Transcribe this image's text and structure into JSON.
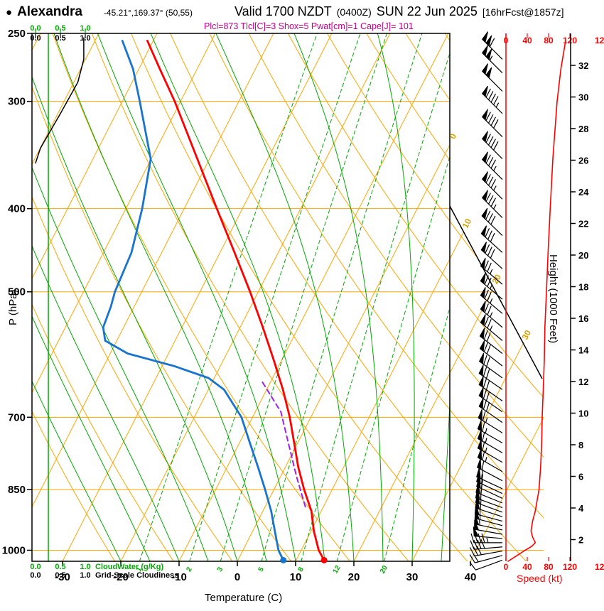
{
  "header": {
    "bullet": "●",
    "station": "Alexandra",
    "coords": "-45.21°,169.37° (50,55)",
    "valid_1": "Valid 1700 NZDT",
    "valid_z": "(0400Z)",
    "valid_2": "SUN 22 Jun 2025",
    "fcst": "[16hrFcst@1857z]",
    "indices": "Plcl=873 Tlcl[C]=3 Shox=5 Pwat[cm]=1 Cape[J]= 101"
  },
  "axes": {
    "left_label": "P (hPa)",
    "bottom_label": "Temperature (C)",
    "right_label": "Height (1000 Feet)",
    "speed_label": "Speed (kt)",
    "cloudwater_scale": [
      "0.0",
      "0.5",
      "1.0"
    ],
    "cloudwater_label": "CloudWater (g/Kg)",
    "cloudiness_scale": [
      "0.0",
      "0.5",
      "1.0"
    ],
    "cloudiness_label": "Grid-Scale Cloudiness"
  },
  "chart_data": {
    "type": "skewt_logp_sounding",
    "pressure_range_hpa": [
      250,
      1030
    ],
    "temp_axis_range_c": [
      -30,
      40
    ],
    "pressure_ticks": [
      250,
      300,
      400,
      500,
      700,
      850,
      1000
    ],
    "isobar_lines": [
      300,
      400,
      500,
      700,
      850,
      1000
    ],
    "temp_ticks_c": [
      -30,
      -20,
      -10,
      0,
      10,
      20,
      30,
      40
    ],
    "height_ticks_kft": [
      2,
      4,
      6,
      8,
      10,
      12,
      14,
      16,
      18,
      20,
      22,
      24,
      26,
      28,
      30,
      32
    ],
    "speed_ticks_kt": [
      0,
      40,
      80,
      120
    ],
    "speed_edge_label": "120",
    "isotherm_label_values": [
      0,
      10,
      20,
      30
    ],
    "mixing_ratio_g_kg": [
      1,
      2,
      3,
      5,
      8,
      12,
      20
    ],
    "temperature_profile": [
      [
        1027,
        14.8
      ],
      [
        1000,
        13.0
      ],
      [
        950,
        10.5
      ],
      [
        900,
        8.3
      ],
      [
        850,
        5.2
      ],
      [
        800,
        2.2
      ],
      [
        750,
        -0.6
      ],
      [
        700,
        -3.6
      ],
      [
        650,
        -7.2
      ],
      [
        600,
        -11.4
      ],
      [
        550,
        -16.1
      ],
      [
        500,
        -21.4
      ],
      [
        450,
        -27.5
      ],
      [
        400,
        -34.4
      ],
      [
        350,
        -42.1
      ],
      [
        300,
        -51.0
      ],
      [
        275,
        -56.4
      ],
      [
        255,
        -61.0
      ]
    ],
    "dewpoint_profile": [
      [
        1027,
        7.8
      ],
      [
        1000,
        6.1
      ],
      [
        950,
        3.8
      ],
      [
        900,
        1.4
      ],
      [
        850,
        -1.5
      ],
      [
        800,
        -4.7
      ],
      [
        750,
        -8.2
      ],
      [
        700,
        -11.9
      ],
      [
        650,
        -17.3
      ],
      [
        630,
        -21.0
      ],
      [
        610,
        -28.0
      ],
      [
        590,
        -37.0
      ],
      [
        570,
        -42.0
      ],
      [
        550,
        -43.5
      ],
      [
        520,
        -44.0
      ],
      [
        500,
        -44.6
      ],
      [
        450,
        -45.2
      ],
      [
        400,
        -47.2
      ],
      [
        350,
        -50.1
      ],
      [
        300,
        -57.0
      ],
      [
        275,
        -61.0
      ],
      [
        255,
        -65.3
      ]
    ],
    "parcel_path": [
      [
        890,
        6.9
      ],
      [
        820,
        2.7
      ],
      [
        750,
        -1.6
      ],
      [
        690,
        -5.6
      ],
      [
        635,
        -11.6
      ]
    ],
    "speed_profile": [
      [
        1030,
        4
      ],
      [
        1015,
        20
      ],
      [
        1000,
        36
      ],
      [
        990,
        48
      ],
      [
        980,
        55
      ],
      [
        965,
        50
      ],
      [
        950,
        47
      ],
      [
        925,
        50
      ],
      [
        900,
        55
      ],
      [
        850,
        62
      ],
      [
        800,
        65
      ],
      [
        750,
        67
      ],
      [
        700,
        68
      ],
      [
        650,
        70
      ],
      [
        600,
        72
      ],
      [
        550,
        73
      ],
      [
        500,
        76
      ],
      [
        450,
        79
      ],
      [
        400,
        83
      ],
      [
        350,
        88
      ],
      [
        300,
        96
      ],
      [
        275,
        103
      ],
      [
        255,
        112
      ]
    ],
    "cloud_fraction_profile": [
      [
        354,
        0
      ],
      [
        340,
        0.1
      ],
      [
        310,
        0.5
      ],
      [
        285,
        0.85
      ],
      [
        268,
        0.97
      ],
      [
        253,
        0.97
      ]
    ],
    "wind_barbs": [
      [
        1027,
        250,
        8
      ],
      [
        1014,
        255,
        18
      ],
      [
        1002,
        260,
        30
      ],
      [
        991,
        265,
        40
      ],
      [
        980,
        270,
        47
      ],
      [
        969,
        275,
        50
      ],
      [
        958,
        280,
        52
      ],
      [
        947,
        282,
        53
      ],
      [
        936,
        285,
        55
      ],
      [
        925,
        285,
        55
      ],
      [
        914,
        288,
        56
      ],
      [
        903,
        290,
        57
      ],
      [
        892,
        290,
        58
      ],
      [
        881,
        292,
        59
      ],
      [
        870,
        295,
        60
      ],
      [
        859,
        295,
        60
      ],
      [
        848,
        295,
        61
      ],
      [
        830,
        298,
        62
      ],
      [
        810,
        300,
        63
      ],
      [
        790,
        300,
        64
      ],
      [
        770,
        300,
        65
      ],
      [
        750,
        300,
        66
      ],
      [
        730,
        302,
        67
      ],
      [
        710,
        305,
        68
      ],
      [
        690,
        305,
        68
      ],
      [
        670,
        305,
        69
      ],
      [
        650,
        305,
        70
      ],
      [
        630,
        306,
        71
      ],
      [
        610,
        308,
        72
      ],
      [
        590,
        308,
        72
      ],
      [
        570,
        310,
        73
      ],
      [
        550,
        310,
        74
      ],
      [
        530,
        310,
        75
      ],
      [
        510,
        310,
        76
      ],
      [
        490,
        310,
        77
      ],
      [
        470,
        312,
        78
      ],
      [
        450,
        312,
        80
      ],
      [
        430,
        314,
        81
      ],
      [
        410,
        315,
        83
      ],
      [
        390,
        315,
        85
      ],
      [
        370,
        315,
        86
      ],
      [
        350,
        315,
        88
      ],
      [
        330,
        315,
        91
      ],
      [
        310,
        315,
        94
      ],
      [
        292,
        315,
        98
      ],
      [
        278,
        315,
        103
      ],
      [
        268,
        315,
        110
      ]
    ]
  },
  "colors": {
    "grid_orange": "#FFA500",
    "green": "#00AA00",
    "temp_red": "#FF0000",
    "dew_blue": "#1874CD",
    "parcel_purple": "#A020F0",
    "magenta": "#C4008C",
    "label_yellow": "#D9A300",
    "black": "#000000"
  }
}
